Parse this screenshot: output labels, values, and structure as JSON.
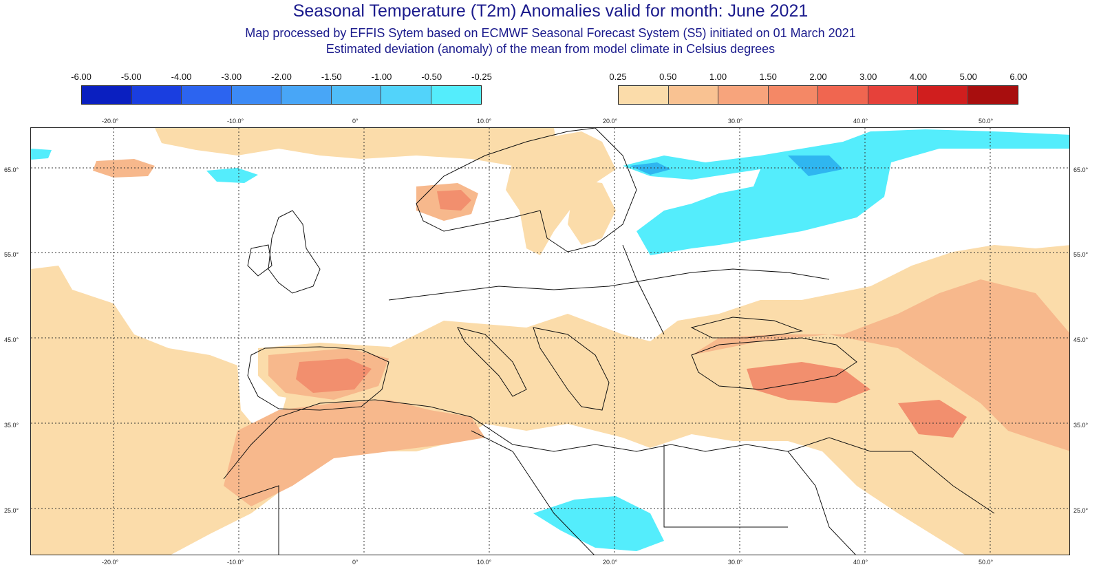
{
  "header": {
    "title": "Seasonal Temperature (T2m) Anomalies valid for month: June 2021",
    "subtitle1": "Map processed by EFFIS Sytem based on ECMWF Seasonal Forecast System (S5) initiated on 01 March 2021",
    "subtitle2": "Estimated deviation (anomaly) of the mean from model climate in Celsius degrees"
  },
  "legend_negative": {
    "labels": [
      "-6.00",
      "-5.00",
      "-4.00",
      "-3.00",
      "-2.00",
      "-1.50",
      "-1.00",
      "-0.50",
      "-0.25"
    ],
    "colors": [
      "#0a1fc0",
      "#1a3ee0",
      "#2c64f0",
      "#3c8af5",
      "#48a6f7",
      "#4fbdf8",
      "#52d3fa",
      "#54edfc"
    ]
  },
  "legend_positive": {
    "labels": [
      "0.25",
      "0.50",
      "1.00",
      "1.50",
      "2.00",
      "3.00",
      "4.00",
      "5.00",
      "6.00"
    ],
    "colors": [
      "#fbdcaa",
      "#f9c292",
      "#f7a47c",
      "#f48866",
      "#f06650",
      "#e6413a",
      "#d01e1e",
      "#a80e0e"
    ]
  },
  "axes": {
    "longitudes": [
      "-20.0°",
      "-10.0°",
      "0°",
      "10.0°",
      "20.0°",
      "30.0°",
      "40.0°",
      "50.0°"
    ],
    "latitudes": [
      "65.0°",
      "55.0°",
      "45.0°",
      "35.0°",
      "25.0°"
    ]
  },
  "map": {
    "land_color": "#ffffff",
    "border_color": "#111111",
    "grid_color": "#333333"
  }
}
